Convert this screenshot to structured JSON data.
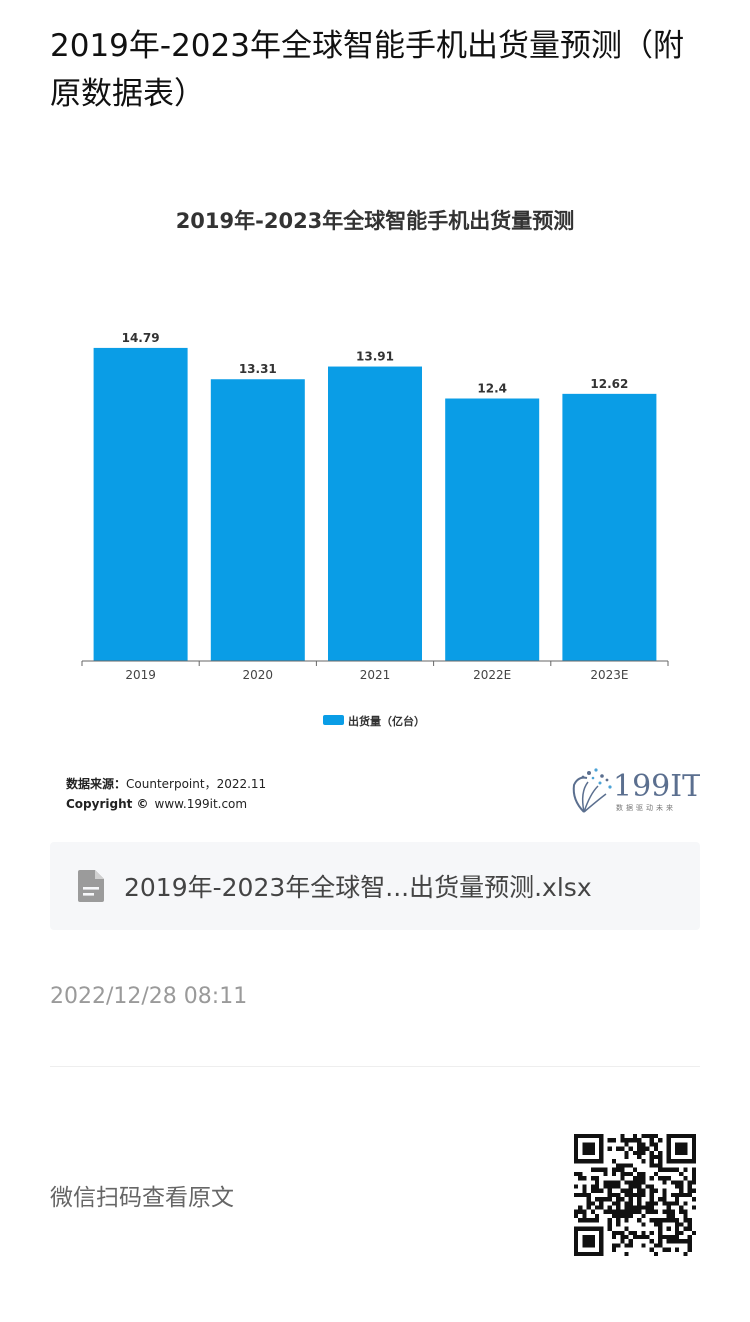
{
  "page": {
    "title": "2019年-2023年全球智能手机出货量预测（附原数据表）",
    "file_name": "2019年-2023年全球智...出货量预测.xlsx",
    "file_icon": "document-icon",
    "timestamp": "2022/12/28 08:11",
    "scan_text": "微信扫码查看原文"
  },
  "chart_data": {
    "type": "bar",
    "title": "2019年-2023年全球智能手机出货量预测",
    "categories": [
      "2019",
      "2020",
      "2021",
      "2022E",
      "2023E"
    ],
    "series": [
      {
        "name": "出货量（亿台）",
        "values": [
          14.79,
          13.31,
          13.91,
          12.4,
          12.62
        ]
      }
    ],
    "data_labels": [
      "14.79",
      "13.31",
      "13.91",
      "12.4",
      "12.62"
    ],
    "ylim": [
      0,
      15.4
    ],
    "grid": false,
    "legend_position": "bottom",
    "bar_color": "#0a9de6",
    "source_label": "数据来源：",
    "source_value": "Counterpoint，2022.11",
    "copyright_label": "Copyright ©",
    "copyright_value": "www.199it.com",
    "brand_name": "199IT",
    "brand_tagline": "数据驱动未来",
    "brand_color": "#5b6f8f"
  }
}
